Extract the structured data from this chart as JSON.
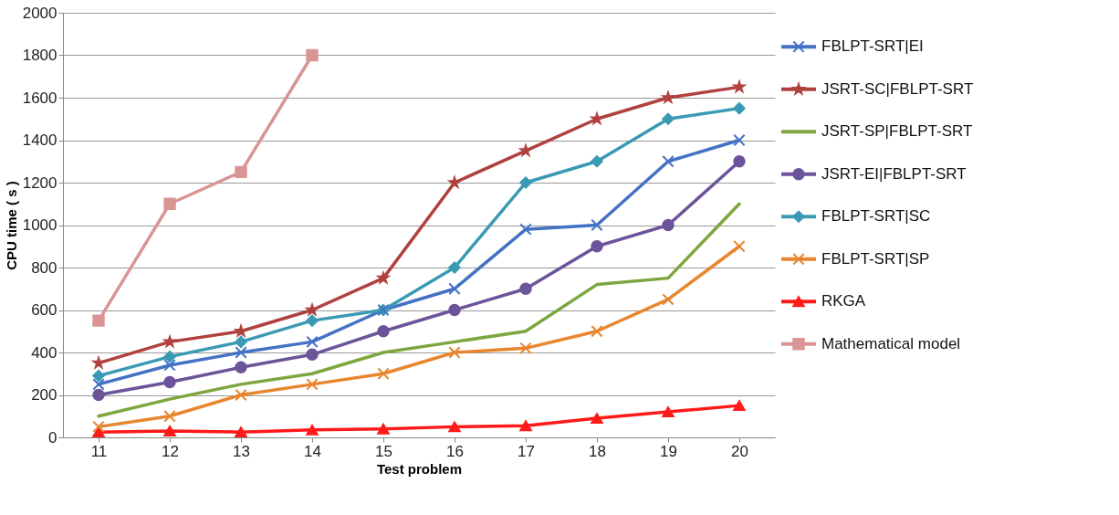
{
  "chart_data": {
    "type": "line",
    "xlabel": "Test problem",
    "ylabel": "CPU time ( s )",
    "categories": [
      "11",
      "12",
      "13",
      "14",
      "15",
      "16",
      "17",
      "18",
      "19",
      "20"
    ],
    "ylim": [
      0,
      2000
    ],
    "yticks": [
      0,
      200,
      400,
      600,
      800,
      1000,
      1200,
      1400,
      1600,
      1800,
      2000
    ],
    "grid": "y",
    "legend": "right",
    "series": [
      {
        "name": "FBLPT-SRT|EI",
        "color": "#4472c4",
        "marker": "cross",
        "values": [
          250,
          340,
          400,
          450,
          600,
          700,
          980,
          1000,
          1300,
          1400
        ]
      },
      {
        "name": "JSRT-SC|FBLPT-SRT",
        "color": "#b0413e",
        "marker": "star",
        "values": [
          350,
          450,
          500,
          600,
          750,
          1200,
          1350,
          1500,
          1600,
          1650
        ]
      },
      {
        "name": "JSRT-SP|FBLPT-SRT",
        "color": "#7ea63f",
        "marker": "none",
        "values": [
          100,
          180,
          250,
          300,
          400,
          450,
          500,
          720,
          750,
          1100
        ]
      },
      {
        "name": "JSRT-EI|FBLPT-SRT",
        "color": "#6c549a",
        "marker": "circle",
        "values": [
          200,
          260,
          330,
          390,
          500,
          600,
          700,
          900,
          1000,
          1300
        ]
      },
      {
        "name": "FBLPT-SRT|SC",
        "color": "#3a9ab4",
        "marker": "diamond",
        "values": [
          290,
          380,
          450,
          550,
          600,
          800,
          1200,
          1300,
          1500,
          1550
        ]
      },
      {
        "name": "FBLPT-SRT|SP",
        "color": "#e8862f",
        "marker": "cross",
        "values": [
          50,
          100,
          200,
          250,
          300,
          400,
          420,
          500,
          650,
          900
        ]
      },
      {
        "name": "RKGA",
        "color": "#ff1a1a",
        "marker": "triangle",
        "values": [
          25,
          30,
          25,
          35,
          40,
          50,
          55,
          90,
          120,
          150
        ]
      },
      {
        "name": "Mathematical model",
        "color": "#d99594",
        "marker": "square",
        "values": [
          550,
          1100,
          1250,
          1800,
          null,
          null,
          null,
          null,
          null,
          null
        ]
      }
    ]
  }
}
